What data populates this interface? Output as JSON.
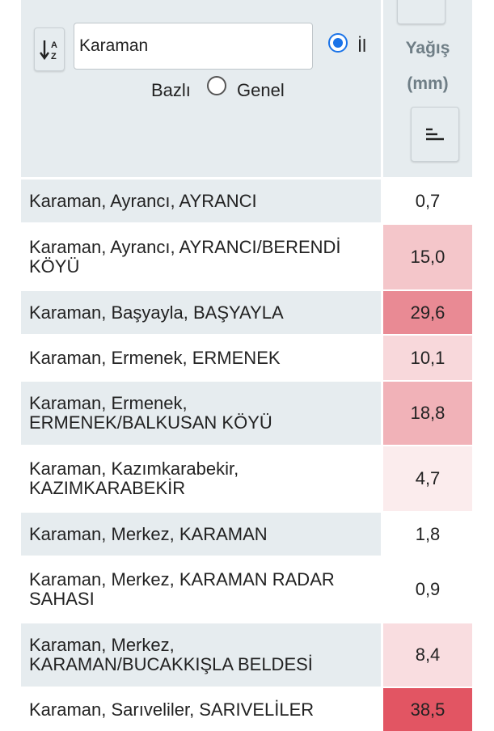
{
  "search": {
    "value": "Karaman"
  },
  "filter": {
    "option_il": "İl",
    "option_il_suffix": "Bazlı",
    "option_genel": "Genel",
    "selected": "il"
  },
  "column": {
    "title_line1": "Yağış",
    "title_line2": "(mm)"
  },
  "icons": {
    "sort_alpha": "sort-alpha-icon",
    "sort_value": "sort-bars-icon"
  },
  "colors": {
    "header_bg": "#e6ecef",
    "radio_accent": "#1a73e8",
    "heat_max": "#e25563"
  },
  "rows": [
    {
      "name": "Karaman, Ayrancı, AYRANCI",
      "value": "0,7",
      "bg": "#ffffff"
    },
    {
      "name": "Karaman, Ayrancı, AYRANCI/BERENDİ KÖYÜ",
      "value": "15,0",
      "bg": "#f4c6ca"
    },
    {
      "name": "Karaman, Başyayla, BAŞYAYLA",
      "value": "29,6",
      "bg": "#e98a94"
    },
    {
      "name": "Karaman, Ermenek, ERMENEK",
      "value": "10,1",
      "bg": "#f8d8db"
    },
    {
      "name": "Karaman, Ermenek, ERMENEK/BALKUSAN KÖYÜ",
      "value": "18,8",
      "bg": "#f1b2b8"
    },
    {
      "name": "Karaman, Kazımkarabekir, KAZIMKARABEKİR",
      "value": "4,7",
      "bg": "#fbeced"
    },
    {
      "name": "Karaman, Merkez, KARAMAN",
      "value": "1,8",
      "bg": "#ffffff"
    },
    {
      "name": "Karaman, Merkez, KARAMAN RADAR SAHASI",
      "value": "0,9",
      "bg": "#ffffff"
    },
    {
      "name": "Karaman, Merkez, KARAMAN/BUCAKKIŞLA BELDESİ",
      "value": "8,4",
      "bg": "#f9dde0"
    },
    {
      "name": "Karaman, Sarıveliler, SARIVELİLER",
      "value": "38,5",
      "bg": "#e25563"
    }
  ]
}
